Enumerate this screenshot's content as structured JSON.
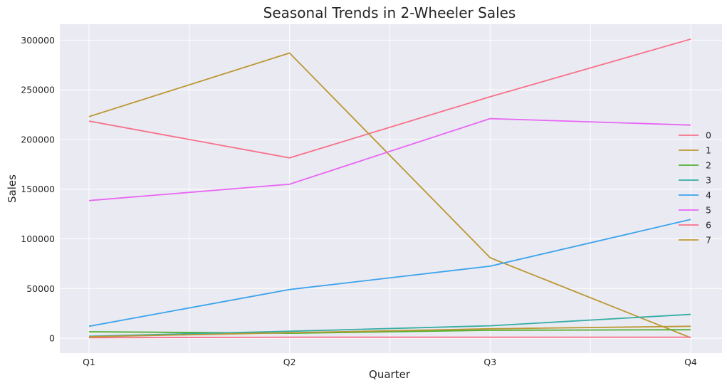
{
  "chart_data": {
    "type": "line",
    "title": "Seasonal Trends in 2-Wheeler Sales",
    "xlabel": "Quarter",
    "ylabel": "Sales",
    "categories": [
      "Q1",
      "Q2",
      "Q3",
      "Q4"
    ],
    "ylim": [
      -15000,
      316000
    ],
    "yticks": [
      0,
      50000,
      100000,
      150000,
      200000,
      250000,
      300000
    ],
    "ytick_labels": [
      "0",
      "50000",
      "100000",
      "150000",
      "200000",
      "250000",
      "300000"
    ],
    "grid": true,
    "legend_position": "right",
    "series": [
      {
        "name": "0",
        "color": "#f77189",
        "values": [
          218500,
          181500,
          243000,
          301000
        ]
      },
      {
        "name": "1",
        "color": "#bb9832",
        "values": [
          223000,
          287000,
          81000,
          500
        ]
      },
      {
        "name": "2",
        "color": "#50b131",
        "values": [
          6500,
          5000,
          8000,
          8500
        ]
      },
      {
        "name": "3",
        "color": "#36ada4",
        "values": [
          2000,
          7000,
          12500,
          24000
        ]
      },
      {
        "name": "4",
        "color": "#3ba3ec",
        "values": [
          12000,
          49000,
          72500,
          119500
        ]
      },
      {
        "name": "5",
        "color": "#e866f4",
        "values": [
          138500,
          155000,
          221000,
          214500
        ]
      },
      {
        "name": "6",
        "color": "#f77189",
        "values": [
          500,
          1000,
          1000,
          1000
        ]
      },
      {
        "name": "7",
        "color": "#bb9832",
        "values": [
          1500,
          5500,
          9500,
          12000
        ]
      }
    ]
  }
}
